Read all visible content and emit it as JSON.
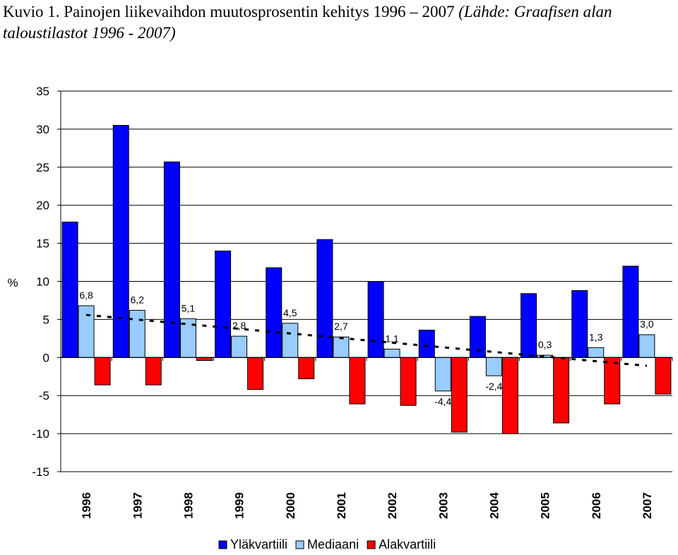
{
  "title": {
    "main": "Kuvio 1. Painojen liikevaihdon muutosprosentin kehitys 1996 – 2007",
    "source": "(Lähde: Graafisen alan taloustilastot 1996 - 2007)"
  },
  "chart_data": {
    "type": "bar",
    "categories": [
      "1996",
      "1997",
      "1998",
      "1999",
      "2000",
      "2001",
      "2002",
      "2003",
      "2004",
      "2005",
      "2006",
      "2007"
    ],
    "ylabel": "%",
    "ylim": [
      -15,
      35
    ],
    "yticks": [
      35,
      30,
      25,
      20,
      15,
      10,
      5,
      0,
      -5,
      -10,
      -15
    ],
    "grid": true,
    "legend_position": "bottom",
    "series": [
      {
        "name": "Yläkvartiili",
        "color": "#0000ff",
        "values": [
          17.8,
          30.5,
          25.7,
          14.0,
          11.8,
          15.5,
          10.0,
          3.6,
          5.4,
          8.4,
          8.8,
          12.0
        ]
      },
      {
        "name": "Mediaani",
        "color": "#99ccff",
        "values": [
          6.8,
          6.2,
          5.1,
          2.8,
          4.5,
          2.7,
          1.1,
          -4.4,
          -2.4,
          0.3,
          1.3,
          3.0
        ],
        "labels": [
          "6,8",
          "6,2",
          "5,1",
          "2,8",
          "4,5",
          "2,7",
          "1,1",
          "-4,4",
          "-2,4",
          "0,3",
          "1,3",
          "3,0"
        ]
      },
      {
        "name": "Alakvartiili",
        "color": "#ff0000",
        "values": [
          -3.6,
          -3.6,
          -0.4,
          -4.2,
          -2.8,
          -6.1,
          -6.3,
          -9.8,
          -10.0,
          -8.6,
          -6.1,
          -4.8
        ]
      }
    ],
    "trendline": {
      "series": "Mediaani",
      "style": "dashed",
      "color": "#000000"
    }
  }
}
